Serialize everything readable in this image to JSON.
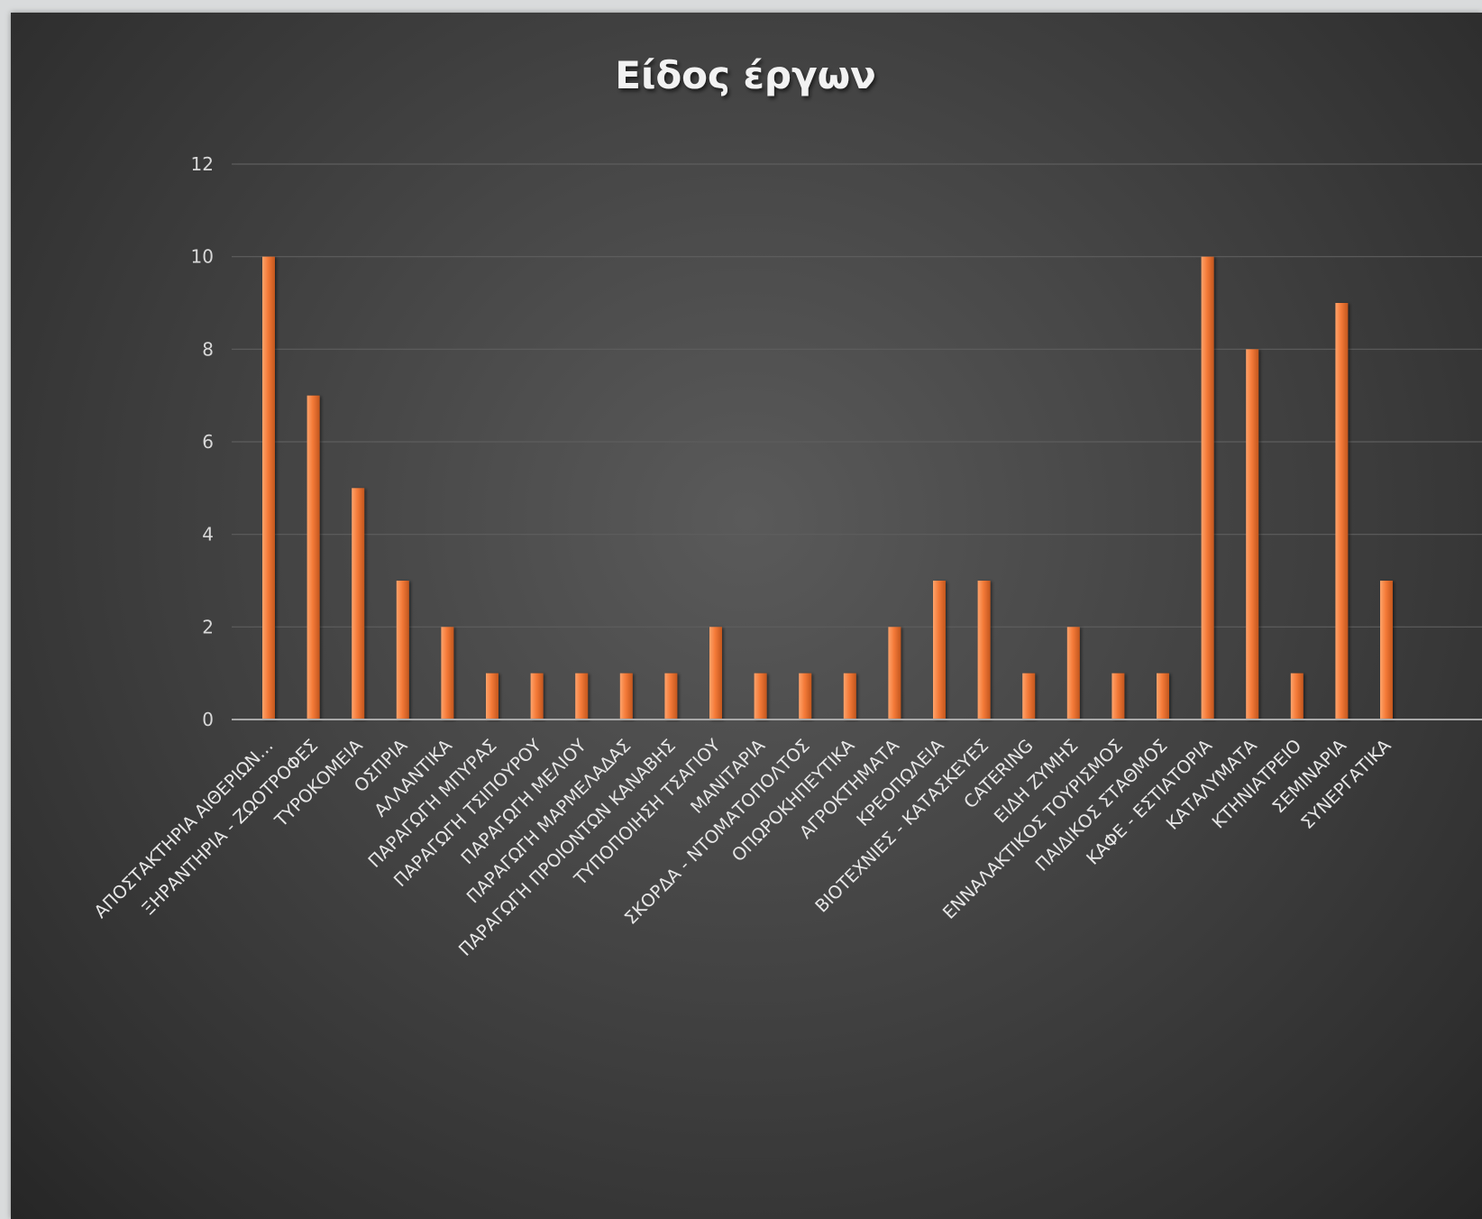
{
  "chart_data": {
    "type": "bar",
    "title": "Είδος έργων",
    "categories": [
      "ΑΠΟΣΤΑΚΤΗΡΙΑ ΑΙΘΕΡΙΩΝ…",
      "ΞΗΡΑΝΤΗΡΙΑ - ΖΩΟΤΡΟΦΕΣ",
      "ΤΥΡΟΚΟΜΕΙΑ",
      "ΟΣΠΡΙΑ",
      "ΑΛΛΑΝΤΙΚΑ",
      "ΠΑΡΑΓΩΓΗ ΜΠΥΡΑΣ",
      "ΠΑΡΑΓΩΓΗ ΤΣΙΠΟΥΡΟΥ",
      "ΠΑΡΑΓΩΓΗ ΜΕΛΙΟΥ",
      "ΠΑΡΑΓΩΓΗ ΜΑΡΜΕΛΑΔΑΣ",
      "ΠΑΡΑΓΩΓΗ ΠΡΟΙΟΝΤΩΝ ΚΑΝΑΒΗΣ",
      "ΤΥΠΟΠΟΙΗΣΗ ΤΣΑΓΙΟΥ",
      "ΜΑΝΙΤΑΡΙΑ",
      "ΣΚΟΡΔΑ - ΝΤΟΜΑΤΟΠΟΛΤΟΣ",
      "ΟΠΩΡΟΚΗΠΕΥΤΙΚΑ",
      "ΑΓΡΟΚΤΗΜΑΤΑ",
      "ΚΡΕΟΠΩΛΕΙΑ",
      "ΒΙΟΤΕΧΝΙΕΣ - ΚΑΤΑΣΚΕΥΕΣ",
      "CATERING",
      "ΕΙΔΗ ΖΥΜΗΣ",
      "ΕΝΝΑΛΑΚΤΙΚΟΣ ΤΟΥΡΙΣΜΟΣ",
      "ΠΑΙΔΙΚΟΣ ΣΤΑΘΜΟΣ",
      "ΚΑΦΕ - ΕΣΤΙΑΤΟΡΙΑ",
      "ΚΑΤΑΛΥΜΑΤΑ",
      "ΚΤΗΝΙΑΤΡΕΙΟ",
      "ΣΕΜΙΝΑΡΙΑ",
      "ΣΥΝΕΡΓΑΤΙΚΑ"
    ],
    "values": [
      10,
      7,
      5,
      3,
      2,
      1,
      1,
      1,
      1,
      1,
      2,
      1,
      1,
      1,
      2,
      3,
      3,
      1,
      2,
      1,
      1,
      10,
      8,
      1,
      9,
      3
    ],
    "y_ticks": [
      "0",
      "2",
      "4",
      "6",
      "8",
      "10",
      "12"
    ],
    "ylim": [
      0,
      12
    ],
    "xlabel": "",
    "ylabel": "",
    "grid": true,
    "legend": "none",
    "colors": {
      "bar_light": "#ffa36b",
      "bar_main": "#f47a38",
      "bar_dark": "#c2561e",
      "grid": "#5e5e5e",
      "axis": "#a9a9a9"
    }
  }
}
